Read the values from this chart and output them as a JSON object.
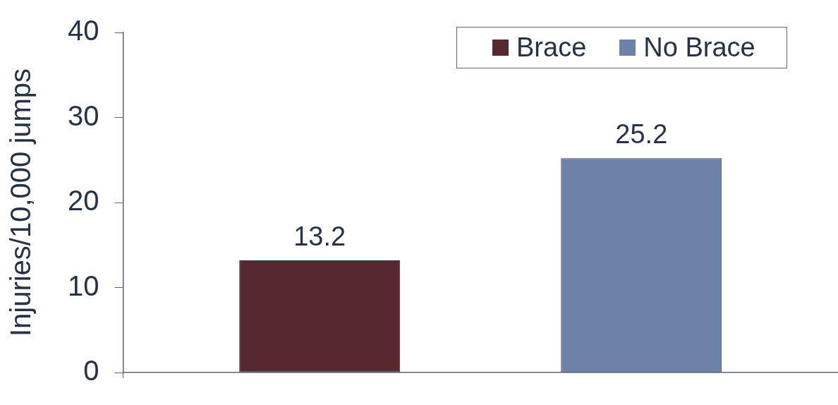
{
  "chart_data": {
    "type": "bar",
    "ylabel": "Injuries/10,000 jumps",
    "categories": [
      null
    ],
    "series": [
      {
        "name": "Brace",
        "color": "#582830",
        "values": [
          13.2
        ]
      },
      {
        "name": "No Brace",
        "color": "#6e82a8",
        "values": [
          25.2
        ]
      }
    ],
    "ylim": [
      0,
      40
    ],
    "yticks": [
      0,
      10,
      20,
      30,
      40
    ],
    "data_labels": true,
    "legend": "top right"
  }
}
